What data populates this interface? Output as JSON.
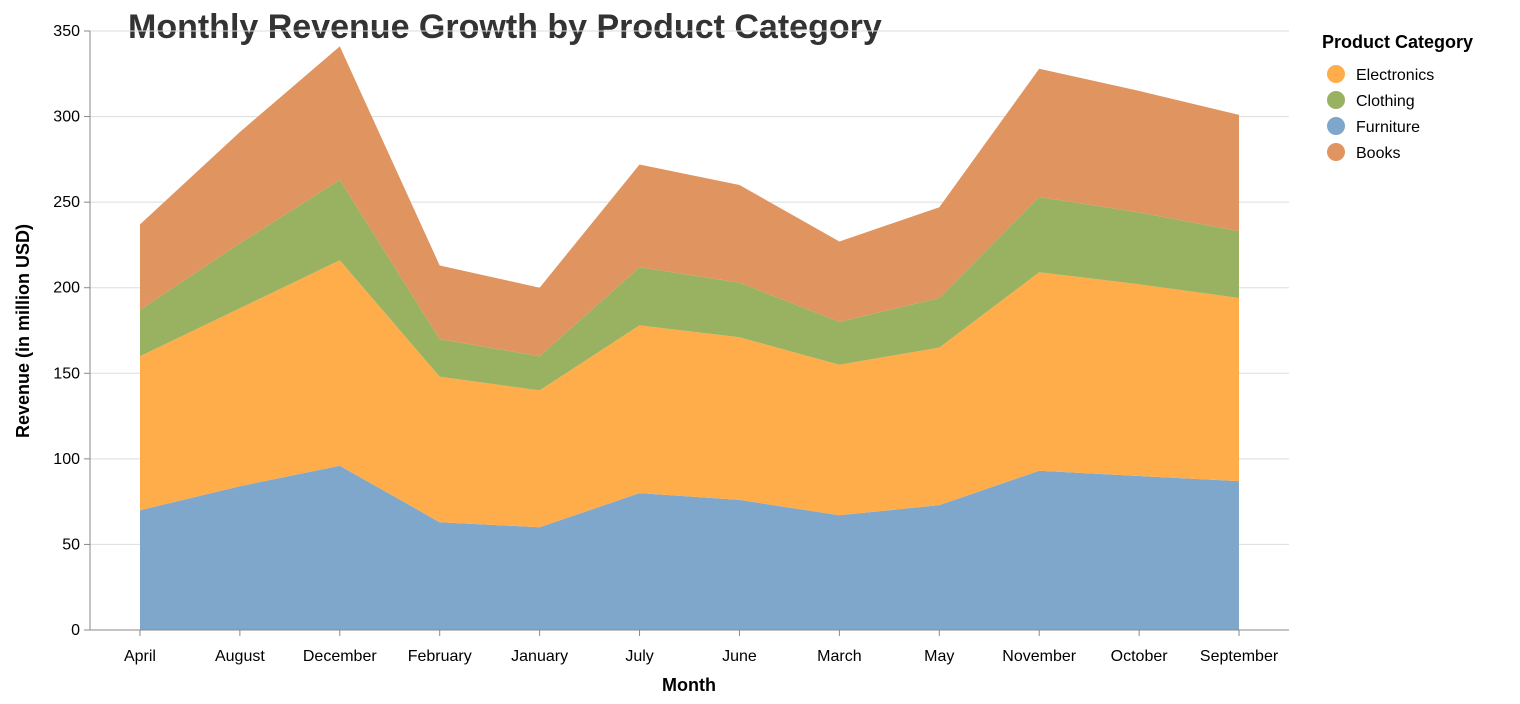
{
  "chart_data": {
    "type": "area",
    "stacked": true,
    "title": "Monthly Revenue Growth by Product Category",
    "xlabel": "Month",
    "ylabel": "Revenue (in million USD)",
    "ylim": [
      0,
      350
    ],
    "yticks": [
      0,
      50,
      100,
      150,
      200,
      250,
      300,
      350
    ],
    "grid": true,
    "legend_title": "Product Category",
    "legend_position": "right",
    "categories": [
      "April",
      "August",
      "December",
      "February",
      "January",
      "July",
      "June",
      "March",
      "May",
      "November",
      "October",
      "September"
    ],
    "series": [
      {
        "name": "Furniture",
        "color": "#7fa7cb",
        "values": [
          70,
          84,
          96,
          63,
          60,
          80,
          76,
          67,
          73,
          93,
          90,
          87
        ]
      },
      {
        "name": "Electronics",
        "color": "#ffad4a",
        "values": [
          90,
          104,
          120,
          85,
          80,
          98,
          95,
          88,
          92,
          116,
          112,
          107
        ]
      },
      {
        "name": "Clothing",
        "color": "#98b262",
        "values": [
          27,
          38,
          47,
          22,
          20,
          34,
          32,
          25,
          29,
          44,
          42,
          39
        ]
      },
      {
        "name": "Books",
        "color": "#e09460",
        "values": [
          50,
          65,
          78,
          43,
          40,
          60,
          57,
          47,
          53,
          75,
          71,
          68
        ]
      }
    ],
    "legend_order": [
      "Electronics",
      "Clothing",
      "Furniture",
      "Books"
    ]
  }
}
